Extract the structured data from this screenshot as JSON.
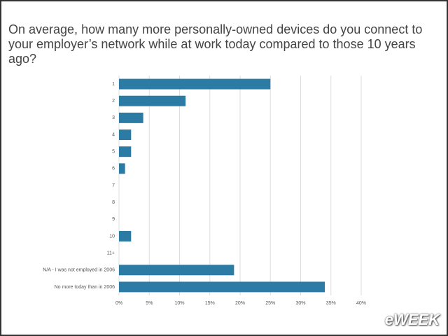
{
  "chart_data": {
    "type": "hbar",
    "title": "On average, how many more personally-owned devices do you connect to your employer’s network while at work today compared to those 10 years ago?",
    "categories": [
      "1",
      "2",
      "3",
      "4",
      "5",
      "6",
      "7",
      "8",
      "9",
      "10",
      "11+",
      "N/A - I was not employed in 2006",
      "No more today than in 2006"
    ],
    "values": [
      25,
      11,
      4,
      2,
      2,
      1,
      0,
      0,
      0,
      2,
      0,
      19,
      34
    ],
    "color": "#2b7ba5",
    "xlim": [
      0,
      40
    ],
    "xticks": [
      {
        "value": 0,
        "label": "0%"
      },
      {
        "value": 5,
        "label": "5%"
      },
      {
        "value": 10,
        "label": "10%"
      },
      {
        "value": 15,
        "label": "15%"
      },
      {
        "value": 20,
        "label": "20%"
      },
      {
        "value": 25,
        "label": "25%"
      },
      {
        "value": 30,
        "label": "30%"
      },
      {
        "value": 35,
        "label": "35%"
      },
      {
        "value": 40,
        "label": "40%"
      }
    ],
    "grid": true
  },
  "watermark": "eWEEK"
}
